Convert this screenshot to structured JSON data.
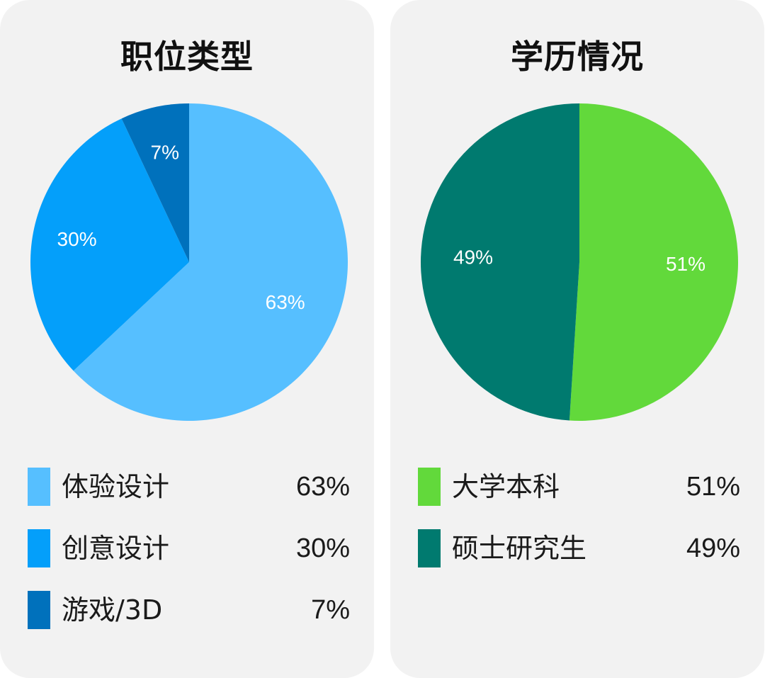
{
  "chart_data": [
    {
      "type": "pie",
      "title": "职位类型",
      "categories": [
        "体验设计",
        "创意设计",
        "游戏/3D"
      ],
      "values": [
        63,
        30,
        7
      ],
      "value_labels": [
        "63%",
        "30%",
        "7%"
      ],
      "colors": [
        "#56bfff",
        "#049ffa",
        "#0071bc"
      ],
      "legend": "bottom"
    },
    {
      "type": "pie",
      "title": "学历情况",
      "categories": [
        "大学本科",
        "硕士研究生"
      ],
      "values": [
        51,
        49
      ],
      "value_labels": [
        "51%",
        "49%"
      ],
      "colors": [
        "#62d93b",
        "#007a6f"
      ],
      "legend": "bottom"
    }
  ]
}
